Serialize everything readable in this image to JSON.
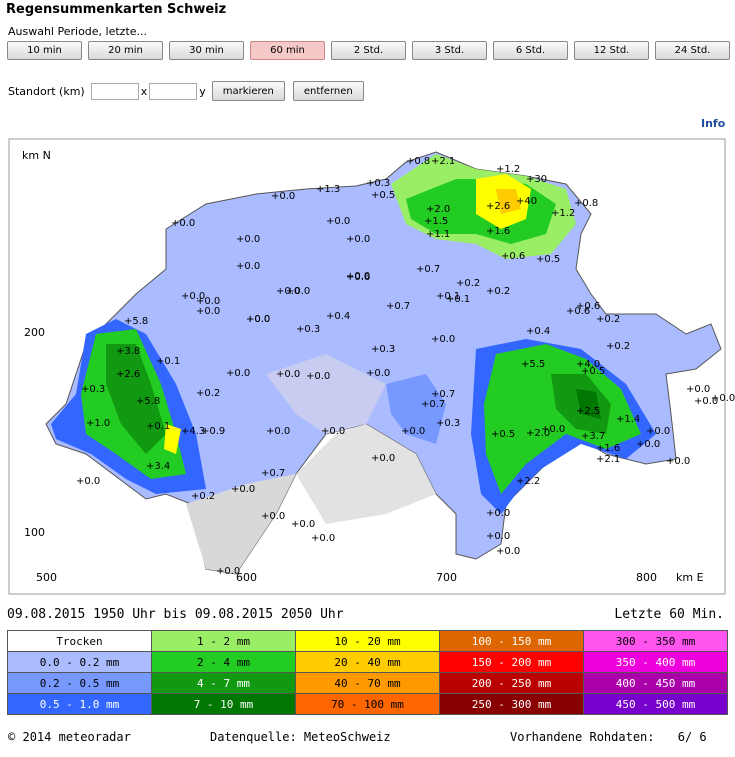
{
  "title": "Regensummenkarten Schweiz",
  "period_label": "Auswahl Periode, letzte...",
  "periods": [
    {
      "label": "10 min",
      "active": false
    },
    {
      "label": "20 min",
      "active": false
    },
    {
      "label": "30 min",
      "active": false
    },
    {
      "label": "60 min",
      "active": true
    },
    {
      "label": "2 Std.",
      "active": false
    },
    {
      "label": "3 Std.",
      "active": false
    },
    {
      "label": "6 Std.",
      "active": false
    },
    {
      "label": "12 Std.",
      "active": false
    },
    {
      "label": "24 Std.",
      "active": false
    }
  ],
  "location": {
    "label": "Standort (km)",
    "x_label": "x",
    "y_label": "y",
    "x_value": "",
    "y_value": "",
    "mark_button": "markieren",
    "remove_button": "entfernen"
  },
  "info_link": "Info",
  "map": {
    "y_axis_label": "km N",
    "x_axis_label": "km E",
    "y_ticks": [
      {
        "label": "200",
        "value": 200
      },
      {
        "label": "100",
        "value": 100
      }
    ],
    "x_ticks": [
      {
        "label": "500",
        "value": 500
      },
      {
        "label": "600",
        "value": 600
      },
      {
        "label": "700",
        "value": 700
      },
      {
        "label": "800",
        "value": 800
      }
    ],
    "readings": [
      {
        "v": "0.8"
      },
      {
        "v": "2.1"
      },
      {
        "v": "1.2"
      },
      {
        "v": "30"
      },
      {
        "v": "40"
      },
      {
        "v": "0.8"
      },
      {
        "v": "2.6"
      },
      {
        "v": "1.2"
      },
      {
        "v": "2.0"
      },
      {
        "v": "1.5"
      },
      {
        "v": "1.1"
      },
      {
        "v": "1.6"
      },
      {
        "v": "1.3"
      },
      {
        "v": "0.3"
      },
      {
        "v": "0.5"
      },
      {
        "v": "0.0"
      },
      {
        "v": "0.0"
      },
      {
        "v": "0.0"
      },
      {
        "v": "0.0"
      },
      {
        "v": "0.0"
      },
      {
        "v": "0.6"
      },
      {
        "v": "0.5"
      },
      {
        "v": "0.0"
      },
      {
        "v": "0.6"
      },
      {
        "v": "0.0"
      },
      {
        "v": "0.7"
      },
      {
        "v": "0.2"
      },
      {
        "v": "0.1"
      },
      {
        "v": "0.0"
      },
      {
        "v": "0.0"
      },
      {
        "v": "0.0"
      },
      {
        "v": "0.0"
      },
      {
        "v": "5.8"
      },
      {
        "v": "3.8"
      },
      {
        "v": "2.6"
      },
      {
        "v": "0.3"
      },
      {
        "v": "5.8"
      },
      {
        "v": "1.0"
      },
      {
        "v": "0.1"
      },
      {
        "v": "4.3"
      },
      {
        "v": "0.9"
      },
      {
        "v": "3.4"
      },
      {
        "v": "0.1"
      },
      {
        "v": "0.2"
      },
      {
        "v": "0.0"
      },
      {
        "v": "0.0"
      },
      {
        "v": "0.0"
      },
      {
        "v": "0.0"
      },
      {
        "v": "0.0"
      },
      {
        "v": "0.0"
      },
      {
        "v": "0.4"
      },
      {
        "v": "0.3"
      },
      {
        "v": "0.2"
      },
      {
        "v": "0.6"
      },
      {
        "v": "0.7"
      },
      {
        "v": "0.3"
      },
      {
        "v": "0.0"
      },
      {
        "v": "0.0"
      },
      {
        "v": "0.1"
      },
      {
        "v": "0.6"
      },
      {
        "v": "0.2"
      },
      {
        "v": "0.4"
      },
      {
        "v": "0.5"
      },
      {
        "v": "0.2"
      },
      {
        "v": "5.5"
      },
      {
        "v": "4.0"
      },
      {
        "v": "2.5"
      },
      {
        "v": "1.4"
      },
      {
        "v": "3.7"
      },
      {
        "v": "0.0"
      },
      {
        "v": "1.6"
      },
      {
        "v": "0.0"
      },
      {
        "v": "2.1"
      },
      {
        "v": "2.0"
      },
      {
        "v": "0.5"
      },
      {
        "v": "2.2"
      },
      {
        "v": "0.7"
      },
      {
        "v": "0.7"
      },
      {
        "v": "0.3"
      },
      {
        "v": "0.0"
      },
      {
        "v": "0.0"
      },
      {
        "v": "0.0"
      },
      {
        "v": "0.0"
      },
      {
        "v": "0.7"
      },
      {
        "v": "0.0"
      },
      {
        "v": "0.2"
      },
      {
        "v": "0.0"
      },
      {
        "v": "0.0"
      },
      {
        "v": "0.0"
      },
      {
        "v": "0.0"
      },
      {
        "v": "0.0"
      },
      {
        "v": "0.0"
      },
      {
        "v": "0.0"
      },
      {
        "v": "0.0"
      },
      {
        "v": "0.0"
      },
      {
        "v": "0.0"
      },
      {
        "v": "0.0"
      },
      {
        "v": "0.0"
      },
      {
        "v": "0.0"
      }
    ]
  },
  "time_range": "09.08.2015 1950 Uhr  bis  09.08.2015 2050 Uhr",
  "last_period": "Letzte 60 Min.",
  "legend": [
    [
      {
        "label": "Trocken",
        "color": "#ffffff"
      },
      {
        "label": "1 - 2 mm",
        "color": "#99ee66"
      },
      {
        "label": "10 - 20 mm",
        "color": "#ffff00"
      },
      {
        "label": "100 - 150 mm",
        "color": "#dd6600"
      },
      {
        "label": "300 - 350 mm",
        "color": "#ff55ee"
      }
    ],
    [
      {
        "label": "0.0 - 0.2 mm",
        "color": "#aabbff"
      },
      {
        "label": "2 - 4 mm",
        "color": "#22cc22"
      },
      {
        "label": "20 - 40 mm",
        "color": "#ffcc00"
      },
      {
        "label": "150 - 200 mm",
        "color": "#ff0000"
      },
      {
        "label": "350 - 400 mm",
        "color": "#ee00dd"
      }
    ],
    [
      {
        "label": "0.2 - 0.5 mm",
        "color": "#7799ff"
      },
      {
        "label": "4 - 7 mm",
        "color": "#119911"
      },
      {
        "label": "40 - 70 mm",
        "color": "#ff9900"
      },
      {
        "label": "200 - 250 mm",
        "color": "#bb0000"
      },
      {
        "label": "400 - 450 mm",
        "color": "#aa00aa"
      }
    ],
    [
      {
        "label": "0.5 - 1.0 mm",
        "color": "#3366ff"
      },
      {
        "label": "7 - 10 mm",
        "color": "#007700"
      },
      {
        "label": "70 - 100 mm",
        "color": "#ff6600"
      },
      {
        "label": "250 - 300 mm",
        "color": "#880000"
      },
      {
        "label": "450 - 500 mm",
        "color": "#7700cc"
      }
    ]
  ],
  "footer": {
    "copyright": "2014 meteoradar",
    "source": "Datenquelle: MeteoSchweiz",
    "raw_label": "Vorhandene Rohdaten:",
    "raw_value": "6/  6"
  }
}
